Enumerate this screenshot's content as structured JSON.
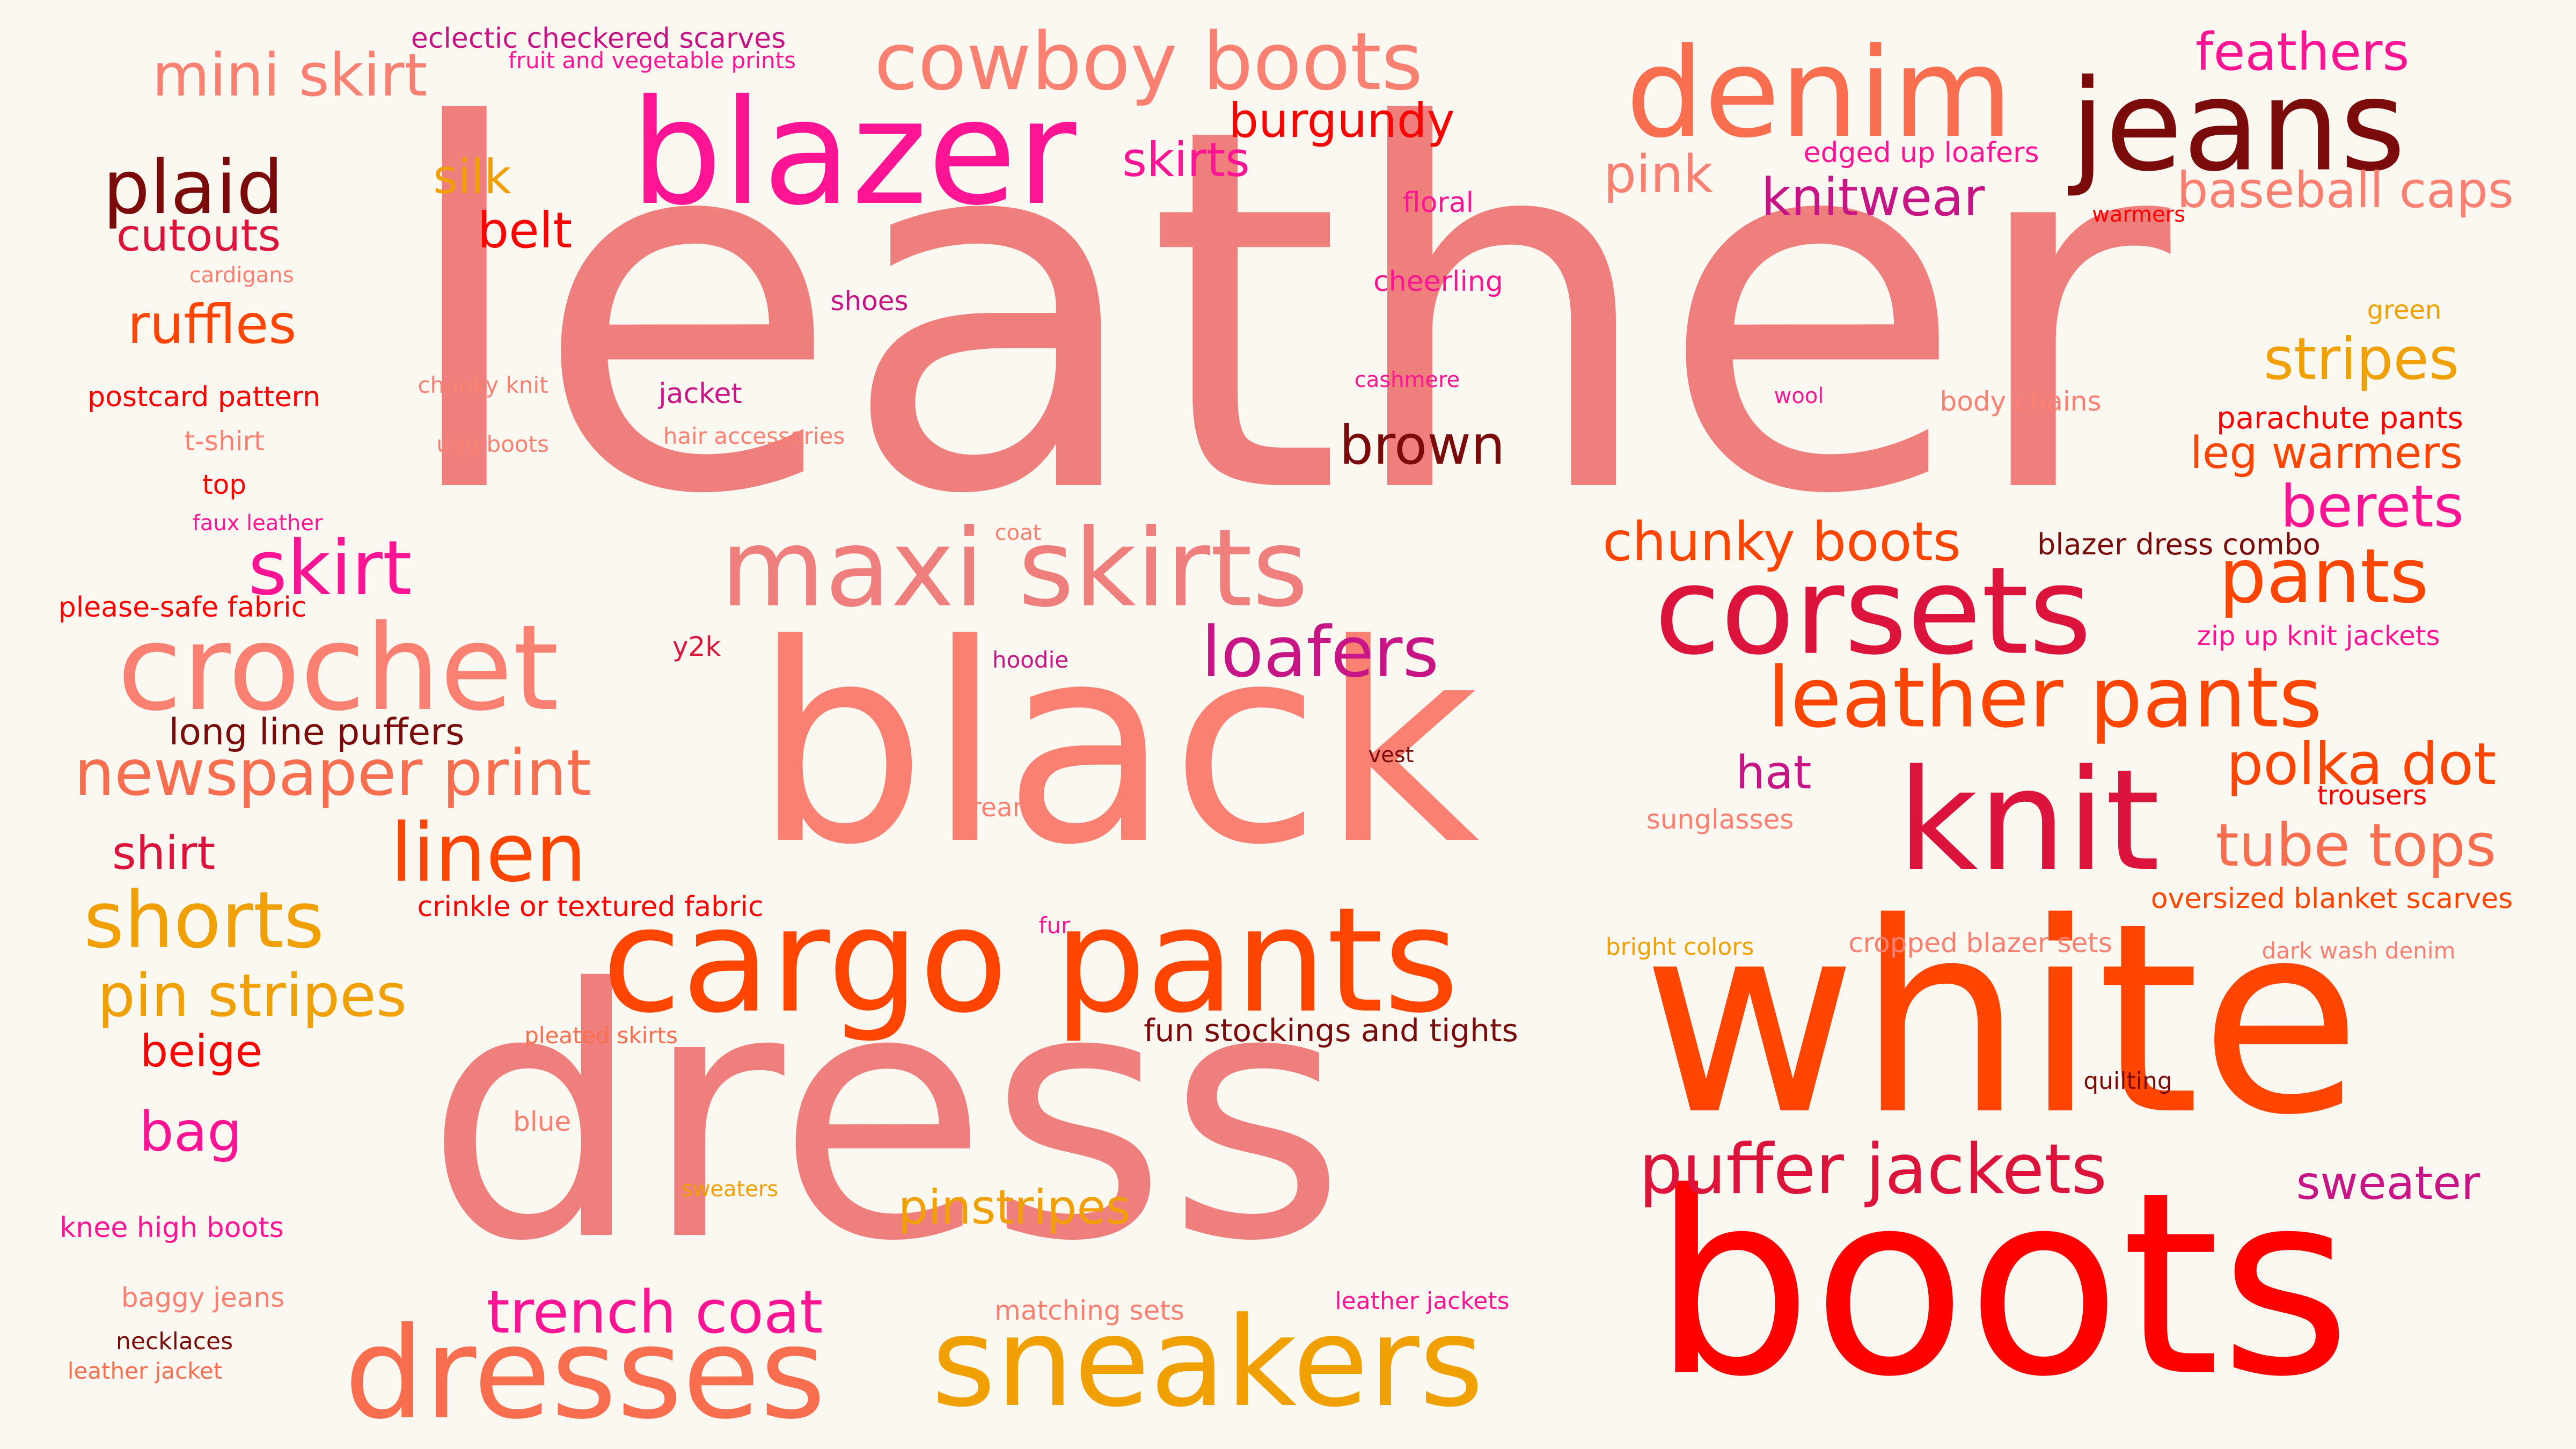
{
  "word_cloud": {
    "words": [
      {
        "text": "leather",
        "color": "#ef7f7d"
      },
      {
        "text": "black",
        "color": "#fa8072"
      },
      {
        "text": "dress",
        "color": "#ef7f7d"
      },
      {
        "text": "white",
        "color": "#ff4500"
      },
      {
        "text": "boots",
        "color": "#ff0000"
      },
      {
        "text": "blazer",
        "color": "#ff1493"
      },
      {
        "text": "denim",
        "color": "#fa6e50"
      },
      {
        "text": "jeans",
        "color": "#7b0a0a"
      },
      {
        "text": "cargo pants",
        "color": "#ff4500"
      },
      {
        "text": "sneakers",
        "color": "#f0a000"
      },
      {
        "text": "dresses",
        "color": "#fa6e50"
      },
      {
        "text": "crochet",
        "color": "#fa8072"
      },
      {
        "text": "maxi skirts",
        "color": "#ef7f7d"
      },
      {
        "text": "knit",
        "color": "#dc143c"
      },
      {
        "text": "corsets",
        "color": "#dc143c"
      },
      {
        "text": "cowboy boots",
        "color": "#fa8072"
      },
      {
        "text": "leather pants",
        "color": "#ff4500"
      },
      {
        "text": "puffer jackets",
        "color": "#dc143c"
      },
      {
        "text": "plaid",
        "color": "#7b0a0a"
      },
      {
        "text": "mini skirt",
        "color": "#fa8072"
      },
      {
        "text": "linen",
        "color": "#ff4500"
      },
      {
        "text": "shorts",
        "color": "#f0a000"
      },
      {
        "text": "newspaper print",
        "color": "#fa6e50"
      },
      {
        "text": "pants",
        "color": "#ff4500"
      },
      {
        "text": "loafers",
        "color": "#c71585"
      },
      {
        "text": "skirt",
        "color": "#ff1493"
      },
      {
        "text": "trench coat",
        "color": "#ff1493"
      },
      {
        "text": "pin stripes",
        "color": "#f0a000"
      },
      {
        "text": "chunky boots",
        "color": "#ff4500"
      },
      {
        "text": "tube tops",
        "color": "#fa6e50"
      },
      {
        "text": "polka dot",
        "color": "#ff4500"
      },
      {
        "text": "stripes",
        "color": "#f0a000"
      },
      {
        "text": "berets",
        "color": "#ff1493"
      },
      {
        "text": "brown",
        "color": "#7b0a0a"
      },
      {
        "text": "pinstripes",
        "color": "#f0a000"
      },
      {
        "text": "ruffles",
        "color": "#ff4500"
      },
      {
        "text": "baseball caps",
        "color": "#fa8072"
      },
      {
        "text": "feathers",
        "color": "#ff1493"
      },
      {
        "text": "knitwear",
        "color": "#c71585"
      },
      {
        "text": "sweater",
        "color": "#c71585"
      },
      {
        "text": "burgundy",
        "color": "#ff0000"
      },
      {
        "text": "pink",
        "color": "#fa8072"
      },
      {
        "text": "bag",
        "color": "#ff1493"
      },
      {
        "text": "silk",
        "color": "#f0a000"
      },
      {
        "text": "belt",
        "color": "#ff0000"
      },
      {
        "text": "skirts",
        "color": "#ff1493"
      },
      {
        "text": "hat",
        "color": "#c71585"
      },
      {
        "text": "cutouts",
        "color": "#dc143c"
      },
      {
        "text": "leg warmers",
        "color": "#ff4500"
      },
      {
        "text": "beige",
        "color": "#ff0000"
      },
      {
        "text": "shirt",
        "color": "#dc143c"
      },
      {
        "text": "long line puffers",
        "color": "#7b0a0a"
      },
      {
        "text": "fun stockings and tights",
        "color": "#7b0a0a"
      },
      {
        "text": "zip up knit jackets",
        "color": "#ff1493"
      },
      {
        "text": "parachute pants",
        "color": "#ff0000"
      },
      {
        "text": "oversized blanket scarves",
        "color": "#ff4500"
      },
      {
        "text": "blazer dress combo",
        "color": "#7b0a0a"
      },
      {
        "text": "crinkle or textured fabric",
        "color": "#ff0000"
      },
      {
        "text": "eclectic checkered scarves",
        "color": "#c71585"
      },
      {
        "text": "postcard pattern",
        "color": "#ff0000"
      },
      {
        "text": "please-safe fabric",
        "color": "#ff0000"
      },
      {
        "text": "cropped blazer sets",
        "color": "#fa8072"
      },
      {
        "text": "knee high boots",
        "color": "#ff1493"
      },
      {
        "text": "edged up loafers",
        "color": "#ff1493"
      },
      {
        "text": "body chains",
        "color": "#fa8072"
      },
      {
        "text": "sunglasses",
        "color": "#fa8072"
      },
      {
        "text": "baggy jeans",
        "color": "#fa8072"
      },
      {
        "text": "matching sets",
        "color": "#fa8072"
      },
      {
        "text": "cheerling",
        "color": "#ff1493"
      },
      {
        "text": "jacket",
        "color": "#c71585"
      },
      {
        "text": "trousers",
        "color": "#ff0000"
      },
      {
        "text": "shoes",
        "color": "#c71585"
      },
      {
        "text": "bright colors",
        "color": "#f0a000"
      },
      {
        "text": "leather jackets",
        "color": "#ff1493"
      },
      {
        "text": "dark wash denim",
        "color": "#fa8072"
      },
      {
        "text": "fruit and vegetable prints",
        "color": "#ff1493"
      },
      {
        "text": "floral",
        "color": "#ff1493"
      },
      {
        "text": "t-shirt",
        "color": "#fa8072"
      },
      {
        "text": "pleated skirts",
        "color": "#fa6e50"
      },
      {
        "text": "necklaces",
        "color": "#7b0a0a"
      },
      {
        "text": "leather jacket",
        "color": "#fa6e50"
      },
      {
        "text": "ugg boots",
        "color": "#fa8072"
      },
      {
        "text": "hair accessories",
        "color": "#fa8072"
      },
      {
        "text": "quilting",
        "color": "#7b0a0a"
      },
      {
        "text": "faux leather",
        "color": "#ff1493"
      },
      {
        "text": "top",
        "color": "#ff0000"
      },
      {
        "text": "y2k",
        "color": "#dc143c"
      },
      {
        "text": "cream",
        "color": "#fa8072"
      },
      {
        "text": "blue",
        "color": "#fa8072"
      },
      {
        "text": "green",
        "color": "#f0a000"
      },
      {
        "text": "chunky knit",
        "color": "#fa8072"
      },
      {
        "text": "cashmere",
        "color": "#ff1493"
      },
      {
        "text": "warmers",
        "color": "#ff0000"
      },
      {
        "text": "cardigans",
        "color": "#fa8072"
      },
      {
        "text": "wool",
        "color": "#ff1493"
      },
      {
        "text": "hoodie",
        "color": "#c71585"
      },
      {
        "text": "vest",
        "color": "#7b0a0a"
      },
      {
        "text": "coat",
        "color": "#fa8072"
      },
      {
        "text": "fur",
        "color": "#ff1493"
      },
      {
        "text": "sweaters",
        "color": "#f0a000"
      }
    ]
  }
}
